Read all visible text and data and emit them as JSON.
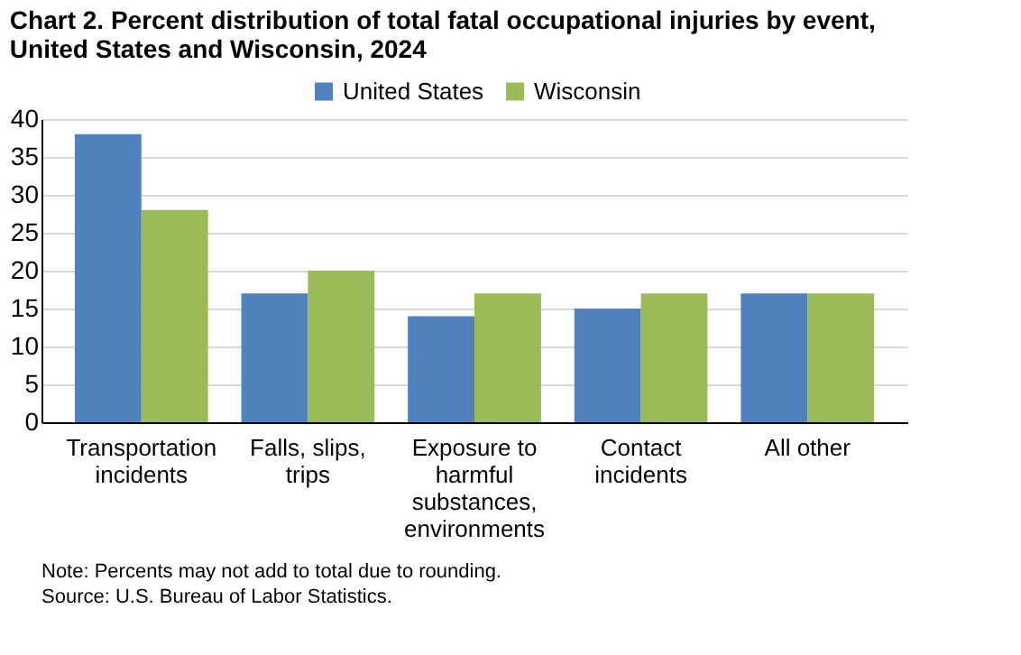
{
  "chart_data": {
    "type": "bar",
    "title": "Chart 2. Percent distribution of total fatal occupational injuries by event, United States and Wisconsin, 2024",
    "categories": [
      "Transportation incidents",
      "Falls, slips, trips",
      "Exposure to harmful substances, environments",
      "Contact incidents",
      "All other"
    ],
    "series": [
      {
        "name": "United States",
        "color": "#4f81bd",
        "values": [
          38,
          17,
          14,
          15,
          17
        ]
      },
      {
        "name": "Wisconsin",
        "color": "#9bbb59",
        "values": [
          28,
          20,
          17,
          17,
          17
        ]
      }
    ],
    "ylim": [
      0,
      40
    ],
    "yticks": [
      0,
      5,
      10,
      15,
      20,
      25,
      30,
      35,
      40
    ],
    "grid": "y",
    "legend": "top",
    "annotations": [
      "Note: Percents may not add to total due to rounding.",
      "Source: U.S. Bureau of Labor Statistics."
    ]
  }
}
